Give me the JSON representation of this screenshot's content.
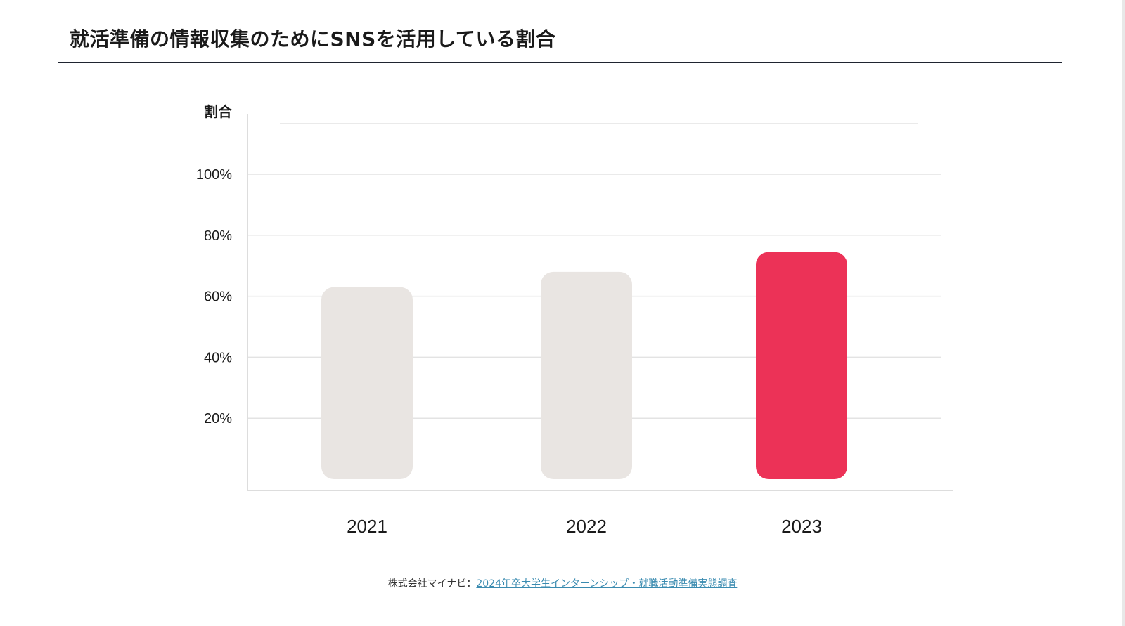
{
  "title": "就活準備の情報収集のためにSNSを活用している割合",
  "chart_data": {
    "type": "bar",
    "ylabel": "割合",
    "xlabel": "",
    "categories": [
      "2021",
      "2022",
      "2023"
    ],
    "values": [
      63,
      68,
      74.5
    ],
    "ylim": [
      0,
      120
    ],
    "yticks": [
      20,
      40,
      60,
      80,
      100
    ],
    "ytick_labels": [
      "20%",
      "40%",
      "60%",
      "80%",
      "100%"
    ],
    "grid": true,
    "bar_colors": [
      "#e9e5e2",
      "#e9e5e2",
      "#ec3257"
    ],
    "highlight_category": "2023"
  },
  "source": {
    "publisher": "株式会社マイナビ：",
    "study": "2024年卒大学生インターンシップ・就職活動準備実態調査"
  },
  "colors": {
    "highlight": "#ec3257",
    "neutral_bar": "#e9e5e2",
    "grid": "#e3e3e3",
    "link": "#3a8bb0",
    "rule": "#1f2430"
  }
}
